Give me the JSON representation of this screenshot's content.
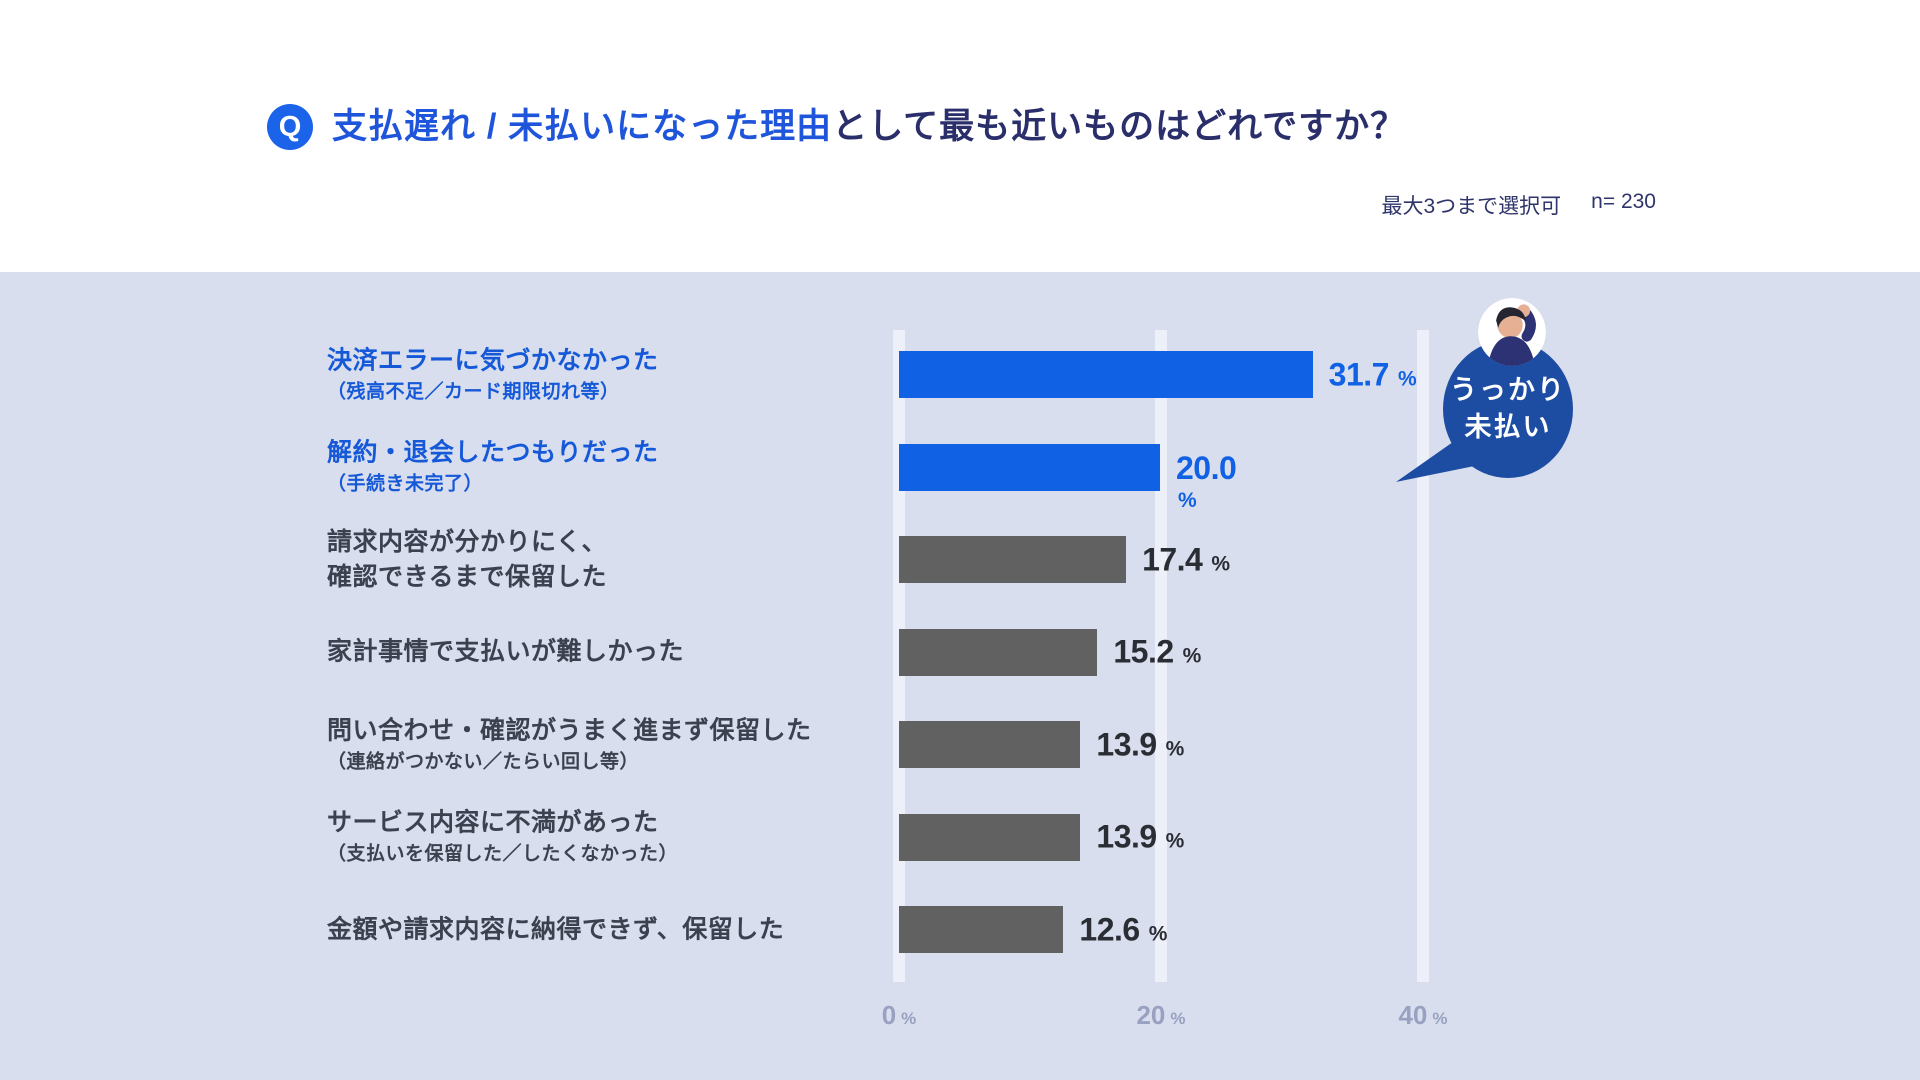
{
  "header": {
    "q_badge": "Q",
    "title_highlight": "支払遅れ / 未払いになった理由",
    "title_rest": "として最も近いものはどれですか？",
    "note_selection": "最大3つまで選択可",
    "note_sample": "n= 230"
  },
  "chart_data": {
    "type": "bar",
    "orientation": "horizontal",
    "title": "支払遅れ / 未払いになった理由として最も近いものはどれですか？",
    "unit": "%",
    "xlim": [
      0,
      45
    ],
    "x_ticks": [
      "0",
      "20",
      "40"
    ],
    "tick_unit": "%",
    "grid": true,
    "bar_colors": {
      "highlight": "#1161e4",
      "default": "#616161"
    },
    "label_colors": {
      "highlight": "#1659d8",
      "default": "#3b414e"
    },
    "value_colors": {
      "highlight": "#1161e4",
      "default": "#2a2d34"
    },
    "categories": [
      "決済エラーに気づかなかった（残高不足／カード期限切れ等）",
      "解約・退会したつもりだった（手続き未完了）",
      "請求内容が分かりにく、確認できるまで保留した",
      "家計事情で支払いが難しかった",
      "問い合わせ・確認がうまく進まず保留した（連絡がつかない／たらい回し等）",
      "サービス内容に不満があった（支払いを保留した／したくなかった）",
      "金額や請求内容に納得できず、保留した"
    ],
    "values": [
      31.7,
      20.0,
      17.4,
      15.2,
      13.9,
      13.9,
      12.6
    ],
    "rows": [
      {
        "label": "決済エラーに気づかなかった",
        "label2": "",
        "sub": "（残高不足／カード期限切れ等）",
        "value": 31.7,
        "value_label": "31.7",
        "unit": "%",
        "highlighted": true,
        "unit_wrapped": false
      },
      {
        "label": "解約・退会したつもりだった",
        "label2": "",
        "sub": "（手続き未完了）",
        "value": 20.0,
        "value_label": "20.0",
        "unit": "%",
        "highlighted": true,
        "unit_wrapped": true
      },
      {
        "label": "請求内容が分かりにく、",
        "label2": "確認できるまで保留した",
        "sub": "",
        "value": 17.4,
        "value_label": "17.4",
        "unit": "%",
        "highlighted": false,
        "unit_wrapped": false
      },
      {
        "label": "家計事情で支払いが難しかった",
        "label2": "",
        "sub": "",
        "value": 15.2,
        "value_label": "15.2",
        "unit": "%",
        "highlighted": false,
        "unit_wrapped": false
      },
      {
        "label": "問い合わせ・確認がうまく進まず保留した",
        "label2": "",
        "sub": "（連絡がつかない／たらい回し等）",
        "value": 13.9,
        "value_label": "13.9",
        "unit": "%",
        "highlighted": false,
        "unit_wrapped": false
      },
      {
        "label": "サービス内容に不満があった",
        "label2": "",
        "sub": "（支払いを保留した／したくなかった）",
        "value": 13.9,
        "value_label": "13.9",
        "unit": "%",
        "highlighted": false,
        "unit_wrapped": false
      },
      {
        "label": "金額や請求内容に納得できず、保留した",
        "label2": "",
        "sub": "",
        "value": 12.6,
        "value_label": "12.6",
        "unit": "%",
        "highlighted": false,
        "unit_wrapped": false
      }
    ]
  },
  "callout": {
    "line1": "うっかり",
    "line2": "未払い",
    "bubble_color": "#1d4da3"
  }
}
